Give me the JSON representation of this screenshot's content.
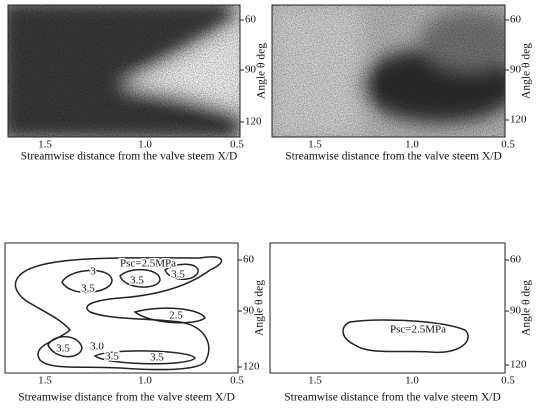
{
  "panels": [
    {
      "x_tick_labels": [
        "1.5",
        "1.0",
        "0.5"
      ],
      "y_tick_labels": [
        "60",
        "90",
        "120"
      ],
      "x_axis_label": "Streamwise distance from the valve steem X/D",
      "y_axis_label": "Angle θ deg"
    },
    {
      "x_tick_labels": [
        "1.5",
        "1.0",
        "0.5"
      ],
      "y_tick_labels": [
        "60",
        "90",
        "120"
      ],
      "x_axis_label": "Streamwise distance from the valve steem X/D",
      "y_axis_label": "Angle θ deg"
    },
    {
      "x_tick_labels": [
        "1.5",
        "1.0",
        "0.5"
      ],
      "y_tick_labels": [
        "60",
        "90",
        "120"
      ],
      "x_axis_label": "Streamwise distance from the valve steem X/D",
      "y_axis_label": "Angle θ deg",
      "contour_labels": [
        "Psc=2.5MPa",
        "3",
        "3.5",
        "3.5",
        "3.5",
        "2.5",
        "3.5",
        "3.0",
        "3.5",
        "3.5"
      ]
    },
    {
      "x_tick_labels": [
        "1.5",
        "1.0",
        "0.5"
      ],
      "y_tick_labels": [
        "60",
        "90",
        "120"
      ],
      "x_axis_label": "Streamwise distance from the valve steem X/D",
      "y_axis_label": "Angle θ deg",
      "contour_labels": [
        "Psc=2.5MPa"
      ]
    }
  ]
}
